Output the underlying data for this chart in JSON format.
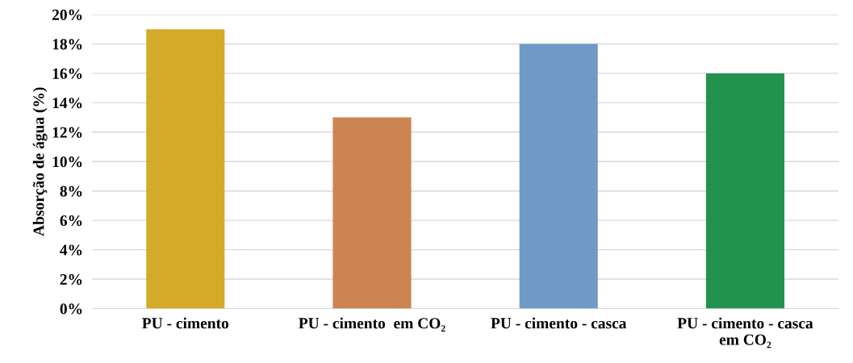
{
  "chart_data": {
    "type": "bar",
    "ylabel": "Absorção de água (%)",
    "categories": [
      "PU - cimento",
      "PU - cimento  em CO₂",
      "PU - cimento - casca",
      "PU - cimento - casca\nem CO₂"
    ],
    "values": [
      19,
      13,
      18,
      16
    ],
    "colors": [
      "#d4aa2b",
      "#cc8452",
      "#6e9ac5",
      "#22924f"
    ],
    "ylim": [
      0,
      20
    ],
    "yticks": [
      {
        "value": 0,
        "label": "0%"
      },
      {
        "value": 2,
        "label": "2%"
      },
      {
        "value": 4,
        "label": "4%"
      },
      {
        "value": 6,
        "label": "6%"
      },
      {
        "value": 8,
        "label": "8%"
      },
      {
        "value": 10,
        "label": "10%"
      },
      {
        "value": 12,
        "label": "12%"
      },
      {
        "value": 14,
        "label": "14%"
      },
      {
        "value": 16,
        "label": "16%"
      },
      {
        "value": 18,
        "label": "18%"
      },
      {
        "value": 20,
        "label": "20%"
      }
    ],
    "grid": "y",
    "legend": false
  }
}
